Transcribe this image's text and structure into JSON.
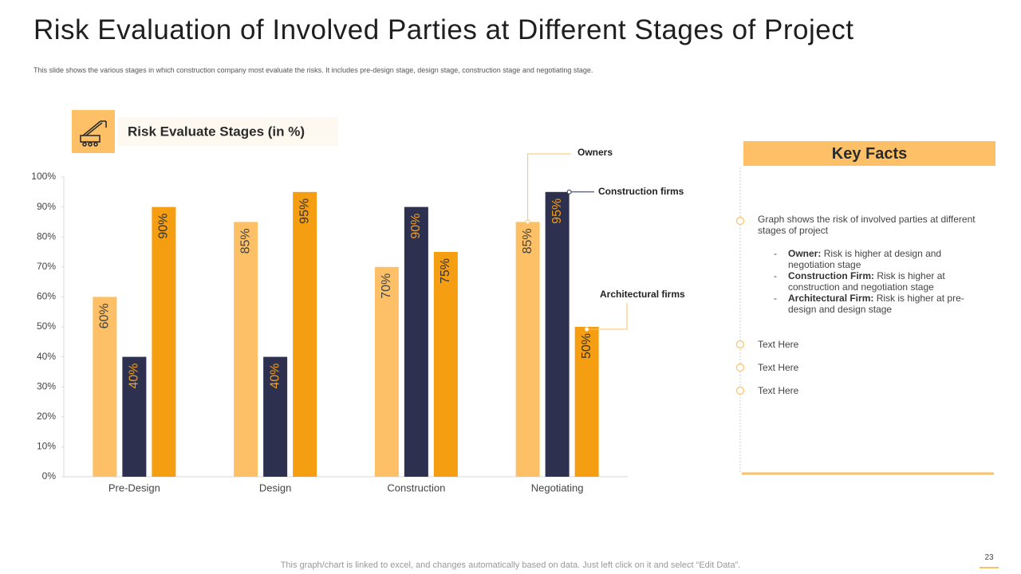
{
  "title": "Risk Evaluation of Involved Parties at Different Stages of Project",
  "subtitle": "This slide shows the various stages in which construction company most evaluate the risks. It includes pre-design stage, design stage, construction stage and negotiating stage.",
  "key_facts": {
    "heading": "Key Facts",
    "intro": "Graph shows the risk of involved parties at different stages of project",
    "points": [
      {
        "label": "Owner:",
        "text": "Risk is higher at design and negotiation stage"
      },
      {
        "label": "Construction Firm:",
        "text": "Risk is higher at construction and negotiation stage"
      },
      {
        "label": "Architectural Firm:",
        "text": "Risk is higher at pre-design and design stage"
      }
    ],
    "items": [
      "Text Here",
      "Text Here",
      "Text Here"
    ]
  },
  "footer": "This graph/chart is linked to excel, and changes automatically based on data. Just left click on it and select “Edit Data”.",
  "page_number": 23,
  "chart_data": {
    "type": "bar",
    "title": "Risk Evaluate Stages (in %)",
    "categories": [
      "Pre-Design",
      "Design",
      "Construction",
      "Negotiating"
    ],
    "series": [
      {
        "name": "Owners",
        "color": "#fdc066",
        "values": [
          60,
          85,
          70,
          85
        ],
        "value_labels": [
          "60%",
          "85%",
          "70%",
          "85%"
        ]
      },
      {
        "name": "Construction firms",
        "color": "#2e3050",
        "values": [
          40,
          40,
          90,
          95
        ],
        "value_labels": [
          "40%",
          "40%",
          "90%",
          "95%"
        ]
      },
      {
        "name": "Architectural firms",
        "color": "#f59e12",
        "values": [
          90,
          95,
          75,
          50
        ],
        "value_labels": [
          "90%",
          "95%",
          "75%",
          "50%"
        ]
      }
    ],
    "ylim": [
      0,
      100
    ],
    "yticks": [
      {
        "value": 0,
        "label": "0%"
      },
      {
        "value": 10,
        "label": "10%"
      },
      {
        "value": 20,
        "label": "20%"
      },
      {
        "value": 30,
        "label": "30%"
      },
      {
        "value": 40,
        "label": "40%"
      },
      {
        "value": 50,
        "label": "50%"
      },
      {
        "value": 60,
        "label": "60%"
      },
      {
        "value": 70,
        "label": "70%"
      },
      {
        "value": 80,
        "label": "80%"
      },
      {
        "value": 90,
        "label": "90%"
      },
      {
        "value": 100,
        "label": "100%"
      }
    ],
    "grid": false
  }
}
